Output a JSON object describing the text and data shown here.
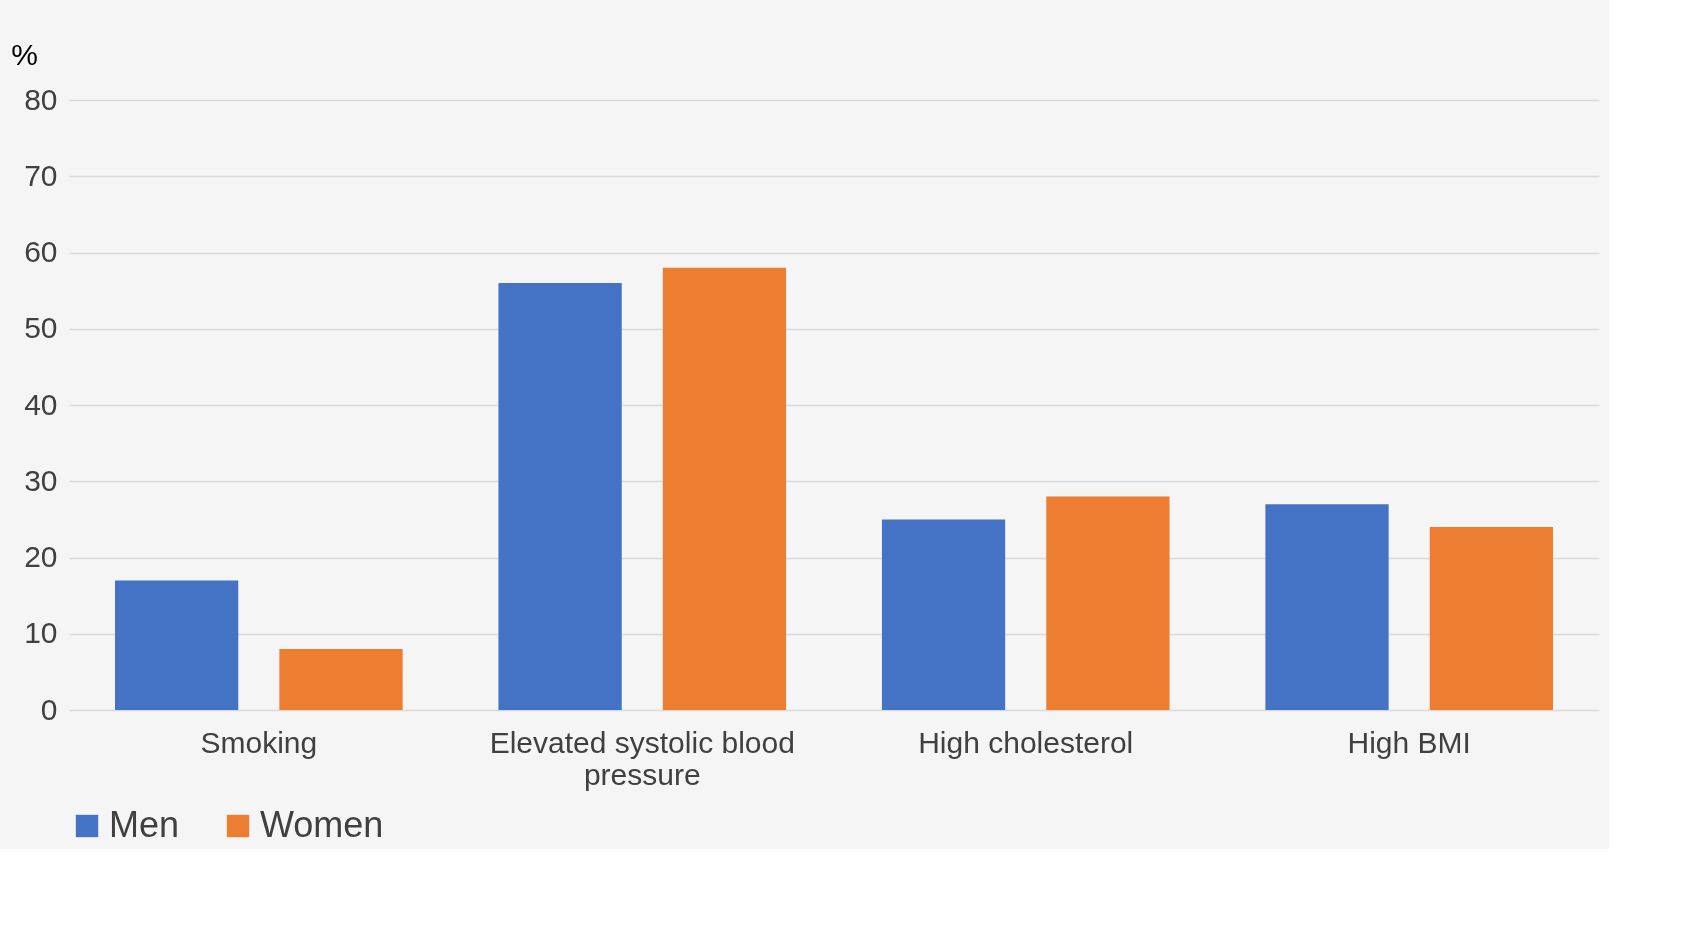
{
  "chart_data": {
    "type": "bar",
    "ylabel": "%",
    "categories": [
      "Smoking",
      "Elevated systolic blood pressure",
      "High cholesterol",
      "High BMI"
    ],
    "series": [
      {
        "name": "Men",
        "color": "#4472c4",
        "values": [
          17,
          56,
          25,
          27
        ]
      },
      {
        "name": "Women",
        "color": "#ed7d31",
        "values": [
          8,
          58,
          28,
          24
        ]
      }
    ],
    "ylim": [
      0,
      80
    ],
    "yticks": [
      0,
      10,
      20,
      30,
      40,
      50,
      60,
      70,
      80
    ],
    "grid": "y",
    "legend": "bottom"
  }
}
